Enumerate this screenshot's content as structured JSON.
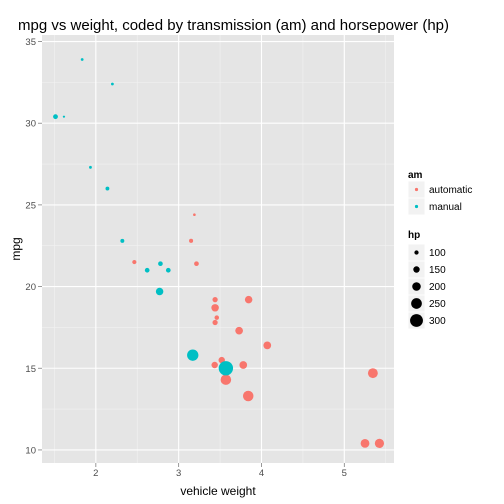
{
  "chart_data": {
    "type": "scatter",
    "title": "mpg vs weight, coded by transmission (am) and horsepower (hp)",
    "xlabel": "vehicle weight",
    "ylabel": "mpg",
    "xlim": [
      1.35,
      5.6
    ],
    "ylim": [
      9.2,
      35.4
    ],
    "x_ticks": [
      2,
      3,
      4,
      5
    ],
    "y_ticks": [
      10,
      15,
      20,
      25,
      30,
      35
    ],
    "grid": true,
    "legend_position": "right",
    "color_legend": {
      "title": "am",
      "entries": [
        {
          "key": "automatic",
          "label": "automatic",
          "color": "#F8766D"
        },
        {
          "key": "manual",
          "label": "manual",
          "color": "#00BFC4"
        }
      ]
    },
    "size_legend": {
      "title": "hp",
      "values": [
        100,
        150,
        200,
        250,
        300
      ],
      "labels": [
        "100",
        "150",
        "200",
        "250",
        "300"
      ]
    },
    "series": [
      {
        "name": "automatic",
        "color": "#F8766D",
        "points": [
          {
            "x": 3.215,
            "y": 21.4,
            "hp": 110
          },
          {
            "x": 3.44,
            "y": 18.7,
            "hp": 175
          },
          {
            "x": 3.46,
            "y": 18.1,
            "hp": 105
          },
          {
            "x": 3.57,
            "y": 14.3,
            "hp": 245
          },
          {
            "x": 3.19,
            "y": 24.4,
            "hp": 62
          },
          {
            "x": 3.15,
            "y": 22.8,
            "hp": 95
          },
          {
            "x": 3.44,
            "y": 19.2,
            "hp": 123
          },
          {
            "x": 3.44,
            "y": 17.8,
            "hp": 123
          },
          {
            "x": 4.07,
            "y": 16.4,
            "hp": 180
          },
          {
            "x": 3.73,
            "y": 17.3,
            "hp": 180
          },
          {
            "x": 3.78,
            "y": 15.2,
            "hp": 180
          },
          {
            "x": 5.25,
            "y": 10.4,
            "hp": 205
          },
          {
            "x": 5.424,
            "y": 10.4,
            "hp": 215
          },
          {
            "x": 5.345,
            "y": 14.7,
            "hp": 230
          },
          {
            "x": 2.465,
            "y": 21.5,
            "hp": 97
          },
          {
            "x": 3.52,
            "y": 15.5,
            "hp": 150
          },
          {
            "x": 3.435,
            "y": 15.2,
            "hp": 150
          },
          {
            "x": 3.84,
            "y": 13.3,
            "hp": 245
          },
          {
            "x": 3.845,
            "y": 19.2,
            "hp": 175
          }
        ]
      },
      {
        "name": "manual",
        "color": "#00BFC4",
        "points": [
          {
            "x": 2.62,
            "y": 21.0,
            "hp": 110
          },
          {
            "x": 2.875,
            "y": 21.0,
            "hp": 110
          },
          {
            "x": 2.32,
            "y": 22.8,
            "hp": 93
          },
          {
            "x": 2.2,
            "y": 32.4,
            "hp": 66
          },
          {
            "x": 1.615,
            "y": 30.4,
            "hp": 52
          },
          {
            "x": 1.835,
            "y": 33.9,
            "hp": 65
          },
          {
            "x": 1.935,
            "y": 27.3,
            "hp": 66
          },
          {
            "x": 2.14,
            "y": 26.0,
            "hp": 91
          },
          {
            "x": 1.513,
            "y": 30.4,
            "hp": 113
          },
          {
            "x": 3.17,
            "y": 15.8,
            "hp": 264
          },
          {
            "x": 2.77,
            "y": 19.7,
            "hp": 175
          },
          {
            "x": 3.57,
            "y": 15.0,
            "hp": 335
          },
          {
            "x": 2.78,
            "y": 21.4,
            "hp": 109
          }
        ]
      }
    ]
  }
}
